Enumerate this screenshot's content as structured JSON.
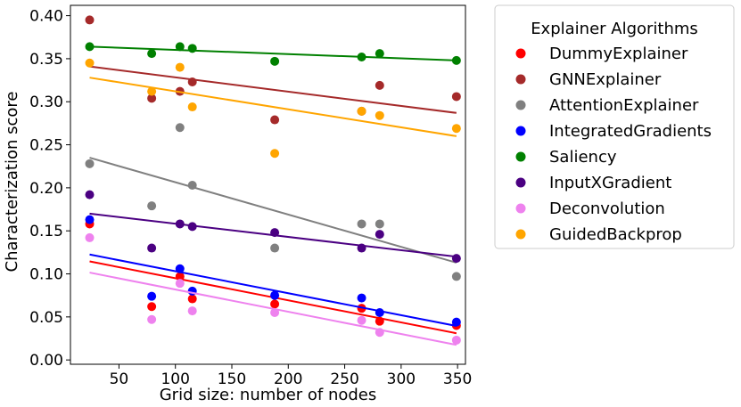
{
  "chart_data": {
    "type": "scatter",
    "xlabel": "Grid size: number of nodes",
    "ylabel": "Characterization score",
    "xlim": [
      7,
      357
    ],
    "ylim": [
      -0.005,
      0.412
    ],
    "x_ticks": [
      50,
      100,
      150,
      200,
      250,
      300,
      350
    ],
    "x_tick_labels": [
      "50",
      "100",
      "150",
      "200",
      "250",
      "300",
      "350"
    ],
    "y_ticks": [
      0.0,
      0.05,
      0.1,
      0.15,
      0.2,
      0.25,
      0.3,
      0.35,
      0.4
    ],
    "y_tick_labels": [
      "0.00",
      "0.05",
      "0.10",
      "0.15",
      "0.20",
      "0.25",
      "0.30",
      "0.35",
      "0.40"
    ],
    "grid": false,
    "legend": {
      "title": "Explainer Algorithms",
      "placement": "outside-right-top"
    },
    "x": [
      24,
      79,
      104,
      115,
      188,
      265,
      281,
      349
    ],
    "series": [
      {
        "name": "DummyExplainer",
        "color": "#ff0000",
        "values": [
          0.158,
          0.062,
          0.097,
          0.071,
          0.065,
          0.06,
          0.045,
          0.04
        ],
        "trend": [
          0.1145,
          0.031
        ]
      },
      {
        "name": "GNNExplainer",
        "color": "#a52a2a",
        "values": [
          0.395,
          0.304,
          0.312,
          0.323,
          0.279,
          0.289,
          0.319,
          0.306
        ],
        "trend": [
          0.341,
          0.287
        ]
      },
      {
        "name": "AttentionExplainer",
        "color": "#808080",
        "values": [
          0.228,
          0.179,
          0.27,
          0.203,
          0.13,
          0.158,
          0.158,
          0.097
        ],
        "trend": [
          0.235,
          0.113
        ]
      },
      {
        "name": "IntegratedGradients",
        "color": "#0000ff",
        "values": [
          0.163,
          0.074,
          0.106,
          0.08,
          0.075,
          0.072,
          0.055,
          0.044
        ],
        "trend": [
          0.1225,
          0.0395
        ]
      },
      {
        "name": "Saliency",
        "color": "#008000",
        "values": [
          0.364,
          0.356,
          0.364,
          0.362,
          0.347,
          0.352,
          0.356,
          0.348
        ],
        "trend": [
          0.364,
          0.348
        ]
      },
      {
        "name": "InputXGradient",
        "color": "#4b0082",
        "values": [
          0.192,
          0.13,
          0.158,
          0.155,
          0.148,
          0.13,
          0.146,
          0.118
        ],
        "trend": [
          0.17,
          0.12
        ]
      },
      {
        "name": "Deconvolution",
        "color": "#ee82ee",
        "values": [
          0.142,
          0.047,
          0.089,
          0.057,
          0.055,
          0.046,
          0.032,
          0.023
        ],
        "trend": [
          0.1015,
          0.0175
        ]
      },
      {
        "name": "GuidedBackprop",
        "color": "#ffa500",
        "values": [
          0.345,
          0.312,
          0.34,
          0.294,
          0.24,
          0.289,
          0.284,
          0.269
        ],
        "trend": [
          0.328,
          0.26
        ]
      }
    ]
  }
}
